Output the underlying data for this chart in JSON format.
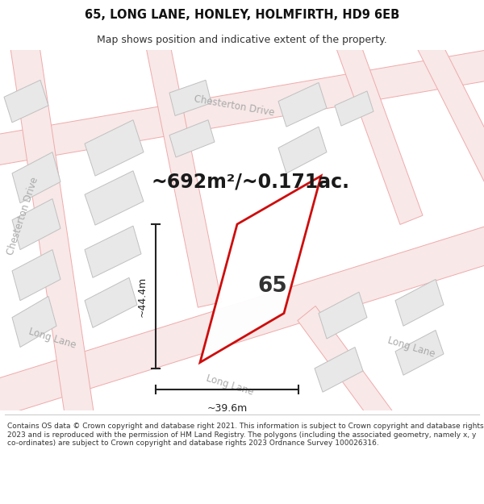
{
  "title_line1": "65, LONG LANE, HONLEY, HOLMFIRTH, HD9 6EB",
  "title_line2": "Map shows position and indicative extent of the property.",
  "area_text": "~692m²/~0.171ac.",
  "number_label": "65",
  "dim_height": "~44.4m",
  "dim_width": "~39.6m",
  "bg_color": "#ffffff",
  "map_bg": "#ffffff",
  "road_line_color": "#f0aaaa",
  "road_fill_color": "#f8e8e8",
  "road_edge_color": "#e8b0b0",
  "building_fill": "#e8e8e8",
  "building_edge": "#c0c0c0",
  "plot_outline_color": "#cc0000",
  "plot_fill": "#ffffff",
  "road_label_color": "#aaaaaa",
  "dim_line_color": "#222222",
  "label_65_color": "#333333",
  "area_text_color": "#1a1a1a",
  "footer_text": "Contains OS data © Crown copyright and database right 2021. This information is subject to Crown copyright and database rights 2023 and is reproduced with the permission of HM Land Registry. The polygons (including the associated geometry, namely x, y co-ordinates) are subject to Crown copyright and database rights 2023 Ordnance Survey 100026316.",
  "footer_sep_color": "#cccccc"
}
